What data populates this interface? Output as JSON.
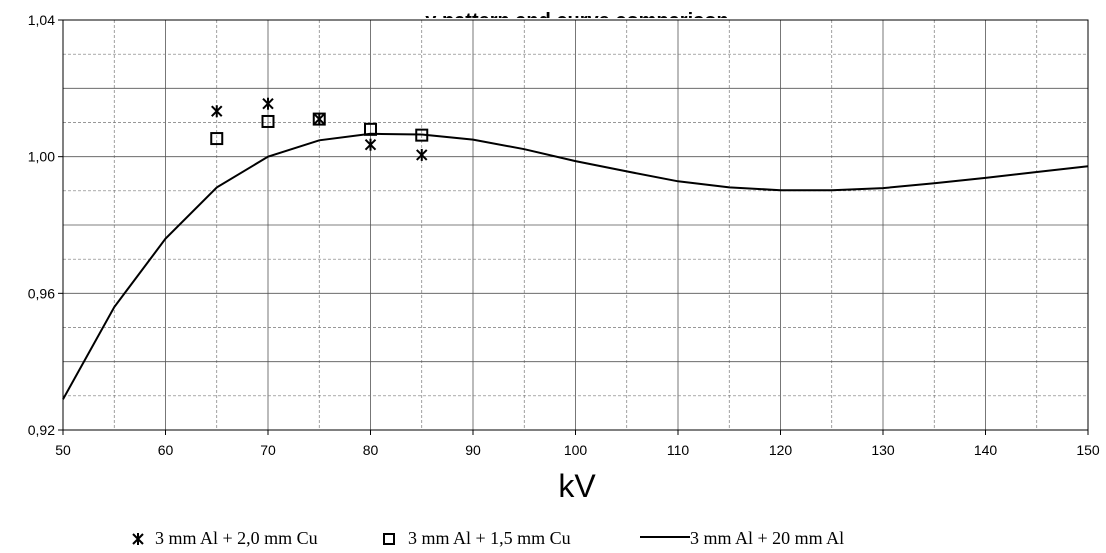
{
  "chart_data": {
    "type": "line",
    "title": "y pattern and curve comparison",
    "xlabel": "kV",
    "ylabel": "",
    "xlim": [
      50,
      150
    ],
    "ylim": [
      0.92,
      1.04
    ],
    "x_ticks": [
      50,
      60,
      70,
      80,
      90,
      100,
      110,
      120,
      130,
      140,
      150
    ],
    "x_tick_labels": [
      "50",
      "60",
      "70",
      "80",
      "90",
      "100",
      "110",
      "120",
      "130",
      "140",
      "150"
    ],
    "y_ticks": [
      0.92,
      0.96,
      1.0,
      1.04
    ],
    "y_tick_labels": [
      "0,92",
      "0,96",
      "1,00",
      "1,04"
    ],
    "grid": "on",
    "series": [
      {
        "name": "3 mm Al + 2,0 mm Cu",
        "marker": "star",
        "x": [
          65,
          70,
          75,
          80,
          85
        ],
        "y": [
          1.0133,
          1.0155,
          1.011,
          1.0035,
          1.0005
        ]
      },
      {
        "name": "3 mm Al + 1,5 mm Cu",
        "marker": "square",
        "x": [
          65,
          70,
          75,
          80,
          85
        ],
        "y": [
          1.0053,
          1.0103,
          1.011,
          1.008,
          1.0063
        ]
      },
      {
        "name": "3 mm Al + 20 mm Al",
        "marker": "line",
        "x": [
          50,
          55,
          60,
          65,
          70,
          75,
          80,
          85,
          90,
          95,
          100,
          105,
          110,
          115,
          120,
          125,
          130,
          135,
          140,
          145,
          150
        ],
        "y": [
          0.929,
          0.956,
          0.976,
          0.991,
          1.0,
          1.0048,
          1.0067,
          1.0065,
          1.005,
          1.0022,
          0.9987,
          0.9957,
          0.9928,
          0.991,
          0.9902,
          0.9902,
          0.9908,
          0.9922,
          0.9938,
          0.9955,
          0.9972
        ]
      }
    ],
    "legend_position": "bottom"
  }
}
